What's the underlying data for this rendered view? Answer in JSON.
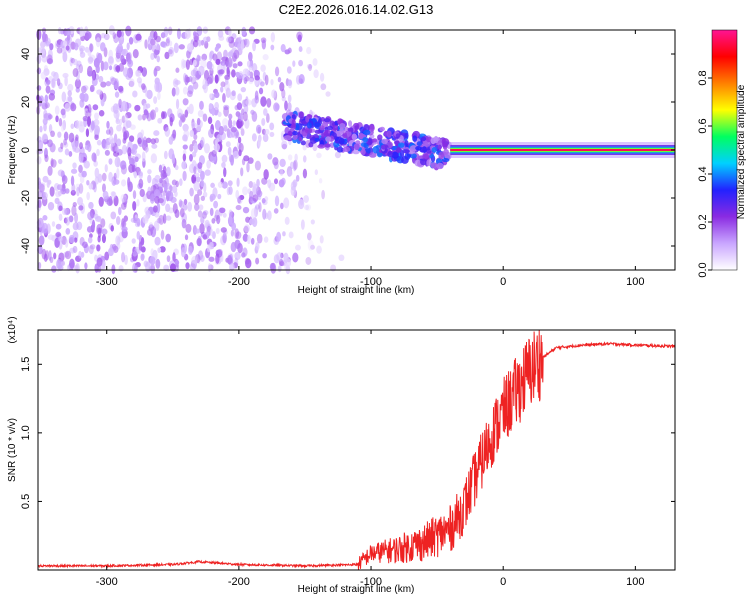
{
  "figure": {
    "title": "C2E2.2026.016.14.02.G13"
  },
  "chart_data": [
    {
      "type": "heatmap",
      "name": "spectrogram",
      "xlabel": "Height of straight line (km)",
      "ylabel": "Frequency (Hz)",
      "xlim": [
        -352,
        130
      ],
      "ylim": [
        -50,
        50
      ],
      "xticks": [
        -300,
        -200,
        -100,
        0,
        100
      ],
      "xtick_labels": [
        "-300",
        "-200",
        "-100",
        "0",
        "100"
      ],
      "yticks": [
        -40,
        -20,
        0,
        20,
        40
      ],
      "ytick_labels": [
        "-40",
        "-20",
        "0",
        "20",
        "40"
      ],
      "colorbar": {
        "label": "Normalized spectral amplitude",
        "range": [
          0,
          1
        ],
        "ticks": [
          0.0,
          0.2,
          0.4,
          0.6,
          0.8
        ],
        "tick_labels": [
          "0.0",
          "0.2",
          "0.4",
          "0.6",
          "0.8"
        ],
        "colormap": [
          "#ffffff",
          "#c9a6ff",
          "#8a2be2",
          "#2222ff",
          "#00d0ff",
          "#00ff60",
          "#ffff00",
          "#ff8000",
          "#ff0000",
          "#ff1493"
        ]
      },
      "regions": {
        "noise_extent_km": [
          -352,
          -120
        ],
        "noise_amplitude": 0.15,
        "transition_km": [
          -165,
          -40
        ],
        "transition_amplitude": 0.3,
        "tone_start_km": -40,
        "tone_frequency_hz": 0,
        "tone_amplitude": 0.95
      }
    },
    {
      "type": "line",
      "name": "snr",
      "xlabel": "Height of straight line (km)",
      "ylabel": "SNR (10 * v/v)",
      "scale_label": "(x10⁴)",
      "xlim": [
        -352,
        130
      ],
      "ylim": [
        0,
        1.75
      ],
      "xticks": [
        -300,
        -200,
        -100,
        0,
        100
      ],
      "xtick_labels": [
        "-300",
        "-200",
        "-100",
        "0",
        "100"
      ],
      "yticks": [
        0.5,
        1.0,
        1.5
      ],
      "ytick_labels": [
        "0.5",
        "1.0",
        "1.5"
      ],
      "line_color": "#ee2222",
      "series": [
        {
          "name": "SNR",
          "x": [
            -352,
            -300,
            -250,
            -230,
            -200,
            -150,
            -110,
            -100,
            -80,
            -60,
            -40,
            -30,
            -20,
            -10,
            0,
            10,
            20,
            30,
            40,
            60,
            80,
            100,
            130
          ],
          "y": [
            0.03,
            0.03,
            0.04,
            0.06,
            0.04,
            0.03,
            0.04,
            0.12,
            0.15,
            0.2,
            0.3,
            0.45,
            0.7,
            0.95,
            1.15,
            1.3,
            1.45,
            1.55,
            1.62,
            1.64,
            1.65,
            1.64,
            1.63
          ]
        }
      ]
    }
  ]
}
